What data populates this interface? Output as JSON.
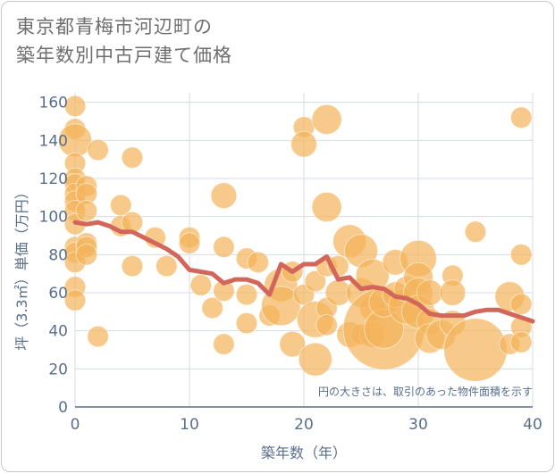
{
  "title_line1": "東京都青梅市河辺町の",
  "title_line2": "築年数別中古戸建て価格",
  "chart_data": {
    "type": "scatter",
    "xlabel": "築年数（年）",
    "ylabel": "坪（3.3㎡）単価（万円）",
    "xlim": [
      0,
      40
    ],
    "ylim": [
      0,
      165
    ],
    "xticks": [
      0,
      10,
      20,
      30,
      40
    ],
    "yticks": [
      0,
      20,
      40,
      60,
      80,
      100,
      120,
      140,
      160
    ],
    "grid": true,
    "note": "円の大きさは、取引のあった物件面積を示す",
    "colors": {
      "bubble": "#f3b45a",
      "line": "#d2665a",
      "grid": "#d4dce6",
      "axis": "#586e8c"
    },
    "points": [
      {
        "x": 0,
        "y": 158,
        "s": 2
      },
      {
        "x": 0,
        "y": 146,
        "s": 2
      },
      {
        "x": 0,
        "y": 140,
        "s": 5
      },
      {
        "x": 0,
        "y": 128,
        "s": 2
      },
      {
        "x": 0,
        "y": 120,
        "s": 2
      },
      {
        "x": 0,
        "y": 117,
        "s": 2
      },
      {
        "x": 0,
        "y": 112,
        "s": 2
      },
      {
        "x": 0,
        "y": 108,
        "s": 2
      },
      {
        "x": 0,
        "y": 103,
        "s": 2
      },
      {
        "x": 0,
        "y": 96,
        "s": 2
      },
      {
        "x": 0,
        "y": 84,
        "s": 2
      },
      {
        "x": 0,
        "y": 81,
        "s": 2
      },
      {
        "x": 0,
        "y": 76,
        "s": 2
      },
      {
        "x": 0,
        "y": 63,
        "s": 2
      },
      {
        "x": 0,
        "y": 56,
        "s": 2
      },
      {
        "x": 1,
        "y": 116,
        "s": 2
      },
      {
        "x": 1,
        "y": 112,
        "s": 2
      },
      {
        "x": 1,
        "y": 103,
        "s": 2
      },
      {
        "x": 1,
        "y": 86,
        "s": 2
      },
      {
        "x": 1,
        "y": 84,
        "s": 2
      },
      {
        "x": 1,
        "y": 80,
        "s": 2
      },
      {
        "x": 2,
        "y": 135,
        "s": 2
      },
      {
        "x": 2,
        "y": 37,
        "s": 2
      },
      {
        "x": 4,
        "y": 106,
        "s": 2
      },
      {
        "x": 4,
        "y": 95,
        "s": 2
      },
      {
        "x": 5,
        "y": 131,
        "s": 2
      },
      {
        "x": 5,
        "y": 97,
        "s": 2
      },
      {
        "x": 5,
        "y": 74,
        "s": 2
      },
      {
        "x": 7,
        "y": 89,
        "s": 2
      },
      {
        "x": 8,
        "y": 74,
        "s": 2
      },
      {
        "x": 10,
        "y": 89,
        "s": 2
      },
      {
        "x": 10,
        "y": 86,
        "s": 2
      },
      {
        "x": 11,
        "y": 64,
        "s": 2
      },
      {
        "x": 12,
        "y": 52,
        "s": 2
      },
      {
        "x": 13,
        "y": 111,
        "s": 3
      },
      {
        "x": 13,
        "y": 84,
        "s": 2
      },
      {
        "x": 13,
        "y": 61,
        "s": 2
      },
      {
        "x": 13,
        "y": 33,
        "s": 2
      },
      {
        "x": 15,
        "y": 78,
        "s": 2
      },
      {
        "x": 15,
        "y": 59,
        "s": 2
      },
      {
        "x": 15,
        "y": 44,
        "s": 2
      },
      {
        "x": 16,
        "y": 76,
        "s": 2
      },
      {
        "x": 17,
        "y": 48,
        "s": 2
      },
      {
        "x": 18,
        "y": 64,
        "s": 5
      },
      {
        "x": 18,
        "y": 53,
        "s": 7
      },
      {
        "x": 19,
        "y": 33,
        "s": 3
      },
      {
        "x": 19,
        "y": 71,
        "s": 2
      },
      {
        "x": 20,
        "y": 147,
        "s": 2
      },
      {
        "x": 20,
        "y": 138,
        "s": 3
      },
      {
        "x": 20,
        "y": 59,
        "s": 2
      },
      {
        "x": 21,
        "y": 66,
        "s": 2
      },
      {
        "x": 21,
        "y": 46,
        "s": 6
      },
      {
        "x": 21,
        "y": 25,
        "s": 5
      },
      {
        "x": 22,
        "y": 151,
        "s": 4
      },
      {
        "x": 22,
        "y": 105,
        "s": 4
      },
      {
        "x": 22,
        "y": 74,
        "s": 2
      },
      {
        "x": 22,
        "y": 52,
        "s": 2
      },
      {
        "x": 22,
        "y": 43,
        "s": 2
      },
      {
        "x": 23,
        "y": 74,
        "s": 2
      },
      {
        "x": 23,
        "y": 60,
        "s": 3
      },
      {
        "x": 24,
        "y": 87,
        "s": 5
      },
      {
        "x": 24,
        "y": 38,
        "s": 3
      },
      {
        "x": 25,
        "y": 82,
        "s": 5
      },
      {
        "x": 25,
        "y": 60,
        "s": 4
      },
      {
        "x": 25,
        "y": 38,
        "s": 2
      },
      {
        "x": 26,
        "y": 69,
        "s": 5
      },
      {
        "x": 26,
        "y": 52,
        "s": 3
      },
      {
        "x": 26,
        "y": 38,
        "s": 3
      },
      {
        "x": 27,
        "y": 41,
        "s": 30
      },
      {
        "x": 27,
        "y": 41,
        "s": 7
      },
      {
        "x": 27,
        "y": 55,
        "s": 4
      },
      {
        "x": 28,
        "y": 76,
        "s": 3
      },
      {
        "x": 28,
        "y": 59,
        "s": 3
      },
      {
        "x": 29,
        "y": 53,
        "s": 6
      },
      {
        "x": 29,
        "y": 62,
        "s": 3
      },
      {
        "x": 30,
        "y": 78,
        "s": 6
      },
      {
        "x": 30,
        "y": 68,
        "s": 4
      },
      {
        "x": 30,
        "y": 60,
        "s": 4
      },
      {
        "x": 30,
        "y": 50,
        "s": 5
      },
      {
        "x": 31,
        "y": 60,
        "s": 3
      },
      {
        "x": 31,
        "y": 45,
        "s": 3
      },
      {
        "x": 31,
        "y": 36,
        "s": 4
      },
      {
        "x": 32,
        "y": 38,
        "s": 4
      },
      {
        "x": 33,
        "y": 69,
        "s": 2
      },
      {
        "x": 33,
        "y": 60,
        "s": 3
      },
      {
        "x": 33,
        "y": 44,
        "s": 3
      },
      {
        "x": 35,
        "y": 92,
        "s": 2
      },
      {
        "x": 35,
        "y": 30,
        "s": 18
      },
      {
        "x": 38,
        "y": 58,
        "s": 4
      },
      {
        "x": 38,
        "y": 33,
        "s": 2
      },
      {
        "x": 39,
        "y": 152,
        "s": 2
      },
      {
        "x": 39,
        "y": 80,
        "s": 2
      },
      {
        "x": 39,
        "y": 54,
        "s": 2
      },
      {
        "x": 39,
        "y": 42,
        "s": 2
      },
      {
        "x": 39,
        "y": 34,
        "s": 2
      }
    ],
    "trend": [
      [
        0,
        97
      ],
      [
        1,
        96
      ],
      [
        2,
        97
      ],
      [
        3,
        95
      ],
      [
        4,
        92
      ],
      [
        5,
        92
      ],
      [
        6,
        89
      ],
      [
        7,
        86
      ],
      [
        8,
        83
      ],
      [
        9,
        79
      ],
      [
        10,
        72
      ],
      [
        11,
        71
      ],
      [
        12,
        70
      ],
      [
        13,
        65
      ],
      [
        14,
        67
      ],
      [
        15,
        67
      ],
      [
        16,
        65
      ],
      [
        17,
        59
      ],
      [
        18,
        75
      ],
      [
        19,
        71
      ],
      [
        20,
        75
      ],
      [
        21,
        75
      ],
      [
        22,
        79
      ],
      [
        23,
        67
      ],
      [
        24,
        68
      ],
      [
        25,
        62
      ],
      [
        26,
        63
      ],
      [
        27,
        62
      ],
      [
        28,
        58
      ],
      [
        29,
        57
      ],
      [
        30,
        54
      ],
      [
        31,
        49
      ],
      [
        32,
        48
      ],
      [
        33,
        48
      ],
      [
        34,
        48
      ],
      [
        35,
        50
      ],
      [
        36,
        51
      ],
      [
        37,
        51
      ],
      [
        38,
        49
      ],
      [
        39,
        47
      ],
      [
        40,
        45
      ]
    ]
  }
}
